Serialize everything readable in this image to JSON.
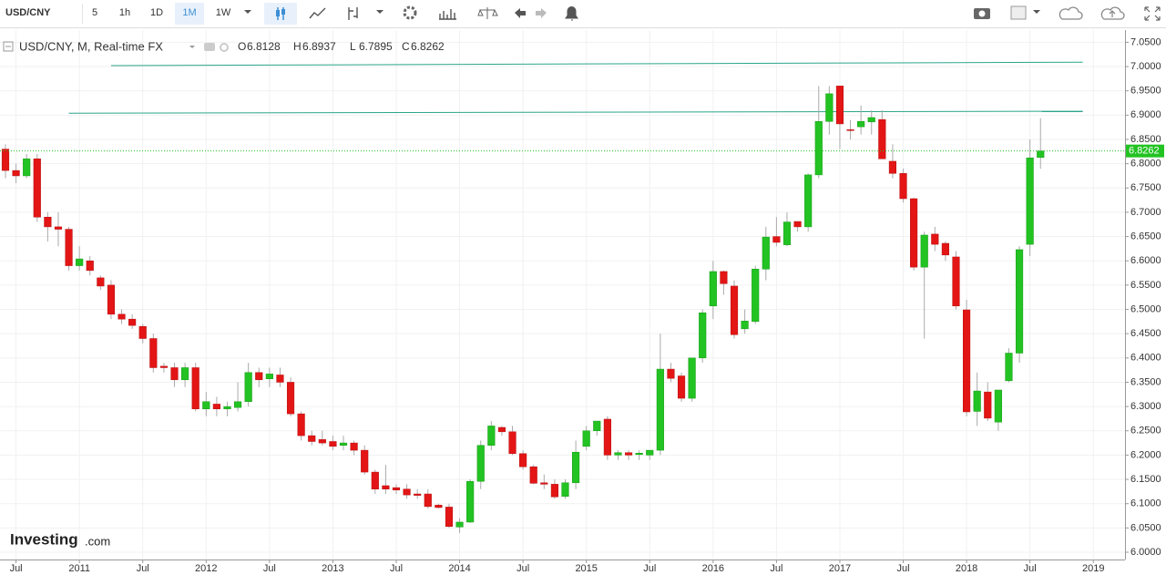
{
  "chart_data": {
    "type": "candlestick",
    "title": "USD/CNY, M, Real-time FX",
    "toolbar": {
      "symbol": "USD/CNY",
      "intervals": [
        "5",
        "1h",
        "1D",
        "1M",
        "1W"
      ],
      "selected": "1M"
    },
    "ohlc_legend": [
      {
        "label": "O",
        "value": 6.8128
      },
      {
        "label": "H",
        "value": 6.8937
      },
      {
        "label": "L",
        "value": 6.7895
      },
      {
        "label": "C",
        "value": 6.8262
      }
    ],
    "logo": {
      "brand": "Investing",
      "suffix": ".com"
    },
    "up_color": "#22c322",
    "down_color": "#e31515",
    "x": [
      "2010-06",
      "2010-07",
      "2010-08",
      "2010-09",
      "2010-10",
      "2010-11",
      "2010-12",
      "2011-01",
      "2011-02",
      "2011-03",
      "2011-04",
      "2011-05",
      "2011-06",
      "2011-07",
      "2011-08",
      "2011-09",
      "2011-10",
      "2011-11",
      "2011-12",
      "2012-01",
      "2012-02",
      "2012-03",
      "2012-04",
      "2012-05",
      "2012-06",
      "2012-07",
      "2012-08",
      "2012-09",
      "2012-10",
      "2012-11",
      "2012-12",
      "2013-01",
      "2013-02",
      "2013-03",
      "2013-04",
      "2013-05",
      "2013-06",
      "2013-07",
      "2013-08",
      "2013-09",
      "2013-10",
      "2013-11",
      "2013-12",
      "2014-01",
      "2014-02",
      "2014-03",
      "2014-04",
      "2014-05",
      "2014-06",
      "2014-07",
      "2014-08",
      "2014-09",
      "2014-10",
      "2014-11",
      "2014-12",
      "2015-01",
      "2015-02",
      "2015-03",
      "2015-04",
      "2015-05",
      "2015-06",
      "2015-07",
      "2015-08",
      "2015-09",
      "2015-10",
      "2015-11",
      "2015-12",
      "2016-01",
      "2016-02",
      "2016-03",
      "2016-04",
      "2016-05",
      "2016-06",
      "2016-07",
      "2016-08",
      "2016-09",
      "2016-10",
      "2016-11",
      "2016-12",
      "2017-01",
      "2017-02",
      "2017-03",
      "2017-04",
      "2017-05",
      "2017-06",
      "2017-07",
      "2017-08",
      "2017-09",
      "2017-10",
      "2017-11",
      "2017-12",
      "2018-01",
      "2018-02",
      "2018-03",
      "2018-04",
      "2018-05",
      "2018-06",
      "2018-07",
      "2018-08"
    ],
    "open": [
      6.83,
      6.786,
      6.775,
      6.81,
      6.69,
      6.67,
      6.665,
      6.59,
      6.6,
      6.565,
      6.55,
      6.49,
      6.48,
      6.465,
      6.44,
      6.383,
      6.38,
      6.355,
      6.38,
      6.295,
      6.305,
      6.295,
      6.298,
      6.31,
      6.37,
      6.357,
      6.365,
      6.35,
      6.285,
      6.24,
      6.232,
      6.228,
      6.22,
      6.225,
      6.21,
      6.165,
      6.137,
      6.133,
      6.13,
      6.12,
      6.12,
      6.097,
      6.093,
      6.052,
      6.062,
      6.146,
      6.22,
      6.257,
      6.248,
      6.203,
      6.176,
      6.143,
      6.14,
      6.115,
      6.143,
      6.218,
      6.25,
      6.274,
      6.2,
      6.205,
      6.201,
      6.2,
      6.21,
      6.377,
      6.363,
      6.317,
      6.4,
      6.507,
      6.578,
      6.548,
      6.46,
      6.475,
      6.583,
      6.65,
      6.633,
      6.681,
      6.67,
      6.777,
      6.887,
      6.96,
      6.87,
      6.876,
      6.886,
      6.891,
      6.805,
      6.78,
      6.728,
      6.587,
      6.655,
      6.636,
      6.608,
      6.499,
      6.29,
      6.33,
      6.268,
      6.353,
      6.41,
      6.634,
      6.8128
    ],
    "high": [
      6.84,
      6.8,
      6.82,
      6.82,
      6.7,
      6.7,
      6.67,
      6.63,
      6.61,
      6.57,
      6.56,
      6.5,
      6.49,
      6.47,
      6.45,
      6.39,
      6.39,
      6.39,
      6.39,
      6.33,
      6.32,
      6.31,
      6.35,
      6.39,
      6.38,
      6.38,
      6.38,
      6.36,
      6.29,
      6.25,
      6.25,
      6.24,
      6.24,
      6.23,
      6.22,
      6.17,
      6.18,
      6.14,
      6.14,
      6.13,
      6.13,
      6.1,
      6.1,
      6.07,
      6.15,
      6.23,
      6.27,
      6.26,
      6.26,
      6.21,
      6.18,
      6.16,
      6.15,
      6.15,
      6.23,
      6.26,
      6.27,
      6.28,
      6.21,
      6.21,
      6.21,
      6.21,
      6.45,
      6.39,
      6.37,
      6.4,
      6.5,
      6.6,
      6.58,
      6.56,
      6.5,
      6.59,
      6.67,
      6.69,
      6.7,
      6.68,
      6.78,
      6.96,
      6.96,
      6.96,
      6.89,
      6.92,
      6.91,
      6.91,
      6.84,
      6.79,
      6.73,
      6.66,
      6.67,
      6.64,
      6.62,
      6.52,
      6.37,
      6.35,
      6.33,
      6.42,
      6.63,
      6.85,
      6.8937
    ],
    "low": [
      6.77,
      6.76,
      6.77,
      6.68,
      6.64,
      6.63,
      6.58,
      6.58,
      6.57,
      6.54,
      6.48,
      6.47,
      6.46,
      6.43,
      6.37,
      6.37,
      6.34,
      6.34,
      6.29,
      6.28,
      6.28,
      6.28,
      6.29,
      6.3,
      6.34,
      6.34,
      6.34,
      6.28,
      6.23,
      6.22,
      6.22,
      6.21,
      6.21,
      6.2,
      6.16,
      6.12,
      6.12,
      6.12,
      6.11,
      6.11,
      6.09,
      6.09,
      6.05,
      6.04,
      6.06,
      6.13,
      6.21,
      6.24,
      6.2,
      6.17,
      6.14,
      6.13,
      6.11,
      6.11,
      6.13,
      6.21,
      6.24,
      6.19,
      6.19,
      6.19,
      6.19,
      6.19,
      6.2,
      6.35,
      6.31,
      6.31,
      6.39,
      6.48,
      6.53,
      6.44,
      6.45,
      6.47,
      6.56,
      6.63,
      6.63,
      6.66,
      6.66,
      6.77,
      6.86,
      6.83,
      6.85,
      6.86,
      6.86,
      6.81,
      6.77,
      6.72,
      6.58,
      6.44,
      6.62,
      6.6,
      6.5,
      6.28,
      6.26,
      6.27,
      6.25,
      6.35,
      6.39,
      6.61,
      6.7895
    ],
    "close": [
      6.786,
      6.775,
      6.81,
      6.69,
      6.67,
      6.665,
      6.59,
      6.604,
      6.58,
      6.548,
      6.49,
      6.48,
      6.467,
      6.44,
      6.38,
      6.38,
      6.355,
      6.38,
      6.295,
      6.31,
      6.295,
      6.3,
      6.31,
      6.37,
      6.355,
      6.367,
      6.35,
      6.285,
      6.24,
      6.228,
      6.225,
      6.218,
      6.225,
      6.21,
      6.165,
      6.13,
      6.13,
      6.128,
      6.118,
      6.117,
      6.094,
      6.092,
      6.053,
      6.062,
      6.146,
      6.22,
      6.26,
      6.248,
      6.203,
      6.176,
      6.142,
      6.14,
      6.114,
      6.143,
      6.206,
      6.25,
      6.27,
      6.2,
      6.205,
      6.2,
      6.204,
      6.21,
      6.377,
      6.358,
      6.317,
      6.4,
      6.493,
      6.578,
      6.553,
      6.448,
      6.476,
      6.583,
      6.649,
      6.638,
      6.68,
      6.67,
      6.777,
      6.887,
      6.944,
      6.882,
      6.869,
      6.887,
      6.895,
      6.81,
      6.78,
      6.728,
      6.587,
      6.653,
      6.634,
      6.612,
      6.507,
      6.289,
      6.332,
      6.276,
      6.334,
      6.41,
      6.623,
      6.812,
      6.8262
    ],
    "xlim": [
      "2010-06",
      "2019-04"
    ],
    "xticks": [
      {
        "value": "2010-07",
        "label": "Jul"
      },
      {
        "value": "2011-01",
        "label": "2011"
      },
      {
        "value": "2011-07",
        "label": "Jul"
      },
      {
        "value": "2012-01",
        "label": "2012"
      },
      {
        "value": "2012-07",
        "label": "Jul"
      },
      {
        "value": "2013-01",
        "label": "2013"
      },
      {
        "value": "2013-07",
        "label": "Jul"
      },
      {
        "value": "2014-01",
        "label": "2014"
      },
      {
        "value": "2014-07",
        "label": "Jul"
      },
      {
        "value": "2015-01",
        "label": "2015"
      },
      {
        "value": "2015-07",
        "label": "Jul"
      },
      {
        "value": "2016-01",
        "label": "2016"
      },
      {
        "value": "2016-07",
        "label": "Jul"
      },
      {
        "value": "2017-01",
        "label": "2017"
      },
      {
        "value": "2017-07",
        "label": "Jul"
      },
      {
        "value": "2018-01",
        "label": "2018"
      },
      {
        "value": "2018-07",
        "label": "Jul"
      },
      {
        "value": "2019-01",
        "label": "2019"
      }
    ],
    "ylim": [
      5.985,
      7.062
    ],
    "yticks": [
      {
        "value": 6.0,
        "label": "6.0000"
      },
      {
        "value": 6.05,
        "label": "6.0500"
      },
      {
        "value": 6.1,
        "label": "6.1000"
      },
      {
        "value": 6.15,
        "label": "6.1500"
      },
      {
        "value": 6.2,
        "label": "6.2000"
      },
      {
        "value": 6.25,
        "label": "6.2500"
      },
      {
        "value": 6.3,
        "label": "6.3000"
      },
      {
        "value": 6.35,
        "label": "6.3500"
      },
      {
        "value": 6.4,
        "label": "6.4000"
      },
      {
        "value": 6.45,
        "label": "6.4500"
      },
      {
        "value": 6.5,
        "label": "6.5000"
      },
      {
        "value": 6.55,
        "label": "6.5500"
      },
      {
        "value": 6.6,
        "label": "6.6000"
      },
      {
        "value": 6.65,
        "label": "6.6500"
      },
      {
        "value": 6.7,
        "label": "6.7000"
      },
      {
        "value": 6.75,
        "label": "6.7500"
      },
      {
        "value": 6.8,
        "label": "6.8000"
      },
      {
        "value": 6.85,
        "label": "6.8500"
      },
      {
        "value": 6.9,
        "label": "6.9000"
      },
      {
        "value": 6.95,
        "label": "6.9500"
      },
      {
        "value": 7.0,
        "label": "7.0000"
      },
      {
        "value": 7.05,
        "label": "7.0500"
      }
    ],
    "grid": true,
    "last_price": 6.8262,
    "trend_lines": [
      {
        "x": [
          "2011-04",
          "2018-12"
        ],
        "y": [
          7.002,
          7.009
        ],
        "color": "#2aa58a"
      },
      {
        "x": [
          "2010-12",
          "2018-12"
        ],
        "y": [
          6.904,
          6.908
        ],
        "color": "#2aa58a"
      }
    ]
  }
}
